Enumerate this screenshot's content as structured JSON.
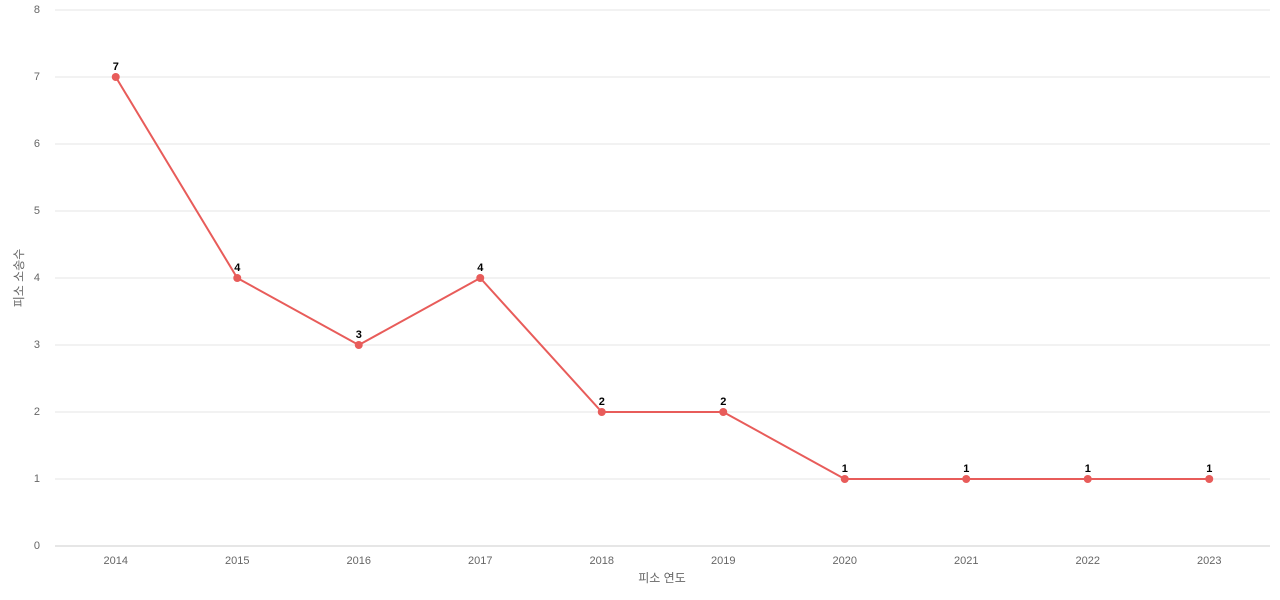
{
  "chart_data": {
    "type": "line",
    "x_label": "피소 연도",
    "y_label": "피소 소송수",
    "categories": [
      "2014",
      "2015",
      "2016",
      "2017",
      "2018",
      "2019",
      "2020",
      "2021",
      "2022",
      "2023"
    ],
    "series": [
      {
        "name": "피소 소송수",
        "color": "#e85c5a",
        "values": [
          7,
          4,
          3,
          4,
          2,
          2,
          1,
          1,
          1,
          1
        ]
      }
    ],
    "ylim": [
      0,
      8
    ],
    "yticks": [
      0,
      1,
      2,
      3,
      4,
      5,
      6,
      7,
      8
    ],
    "grid": true,
    "legend": false,
    "data_labels": true
  }
}
